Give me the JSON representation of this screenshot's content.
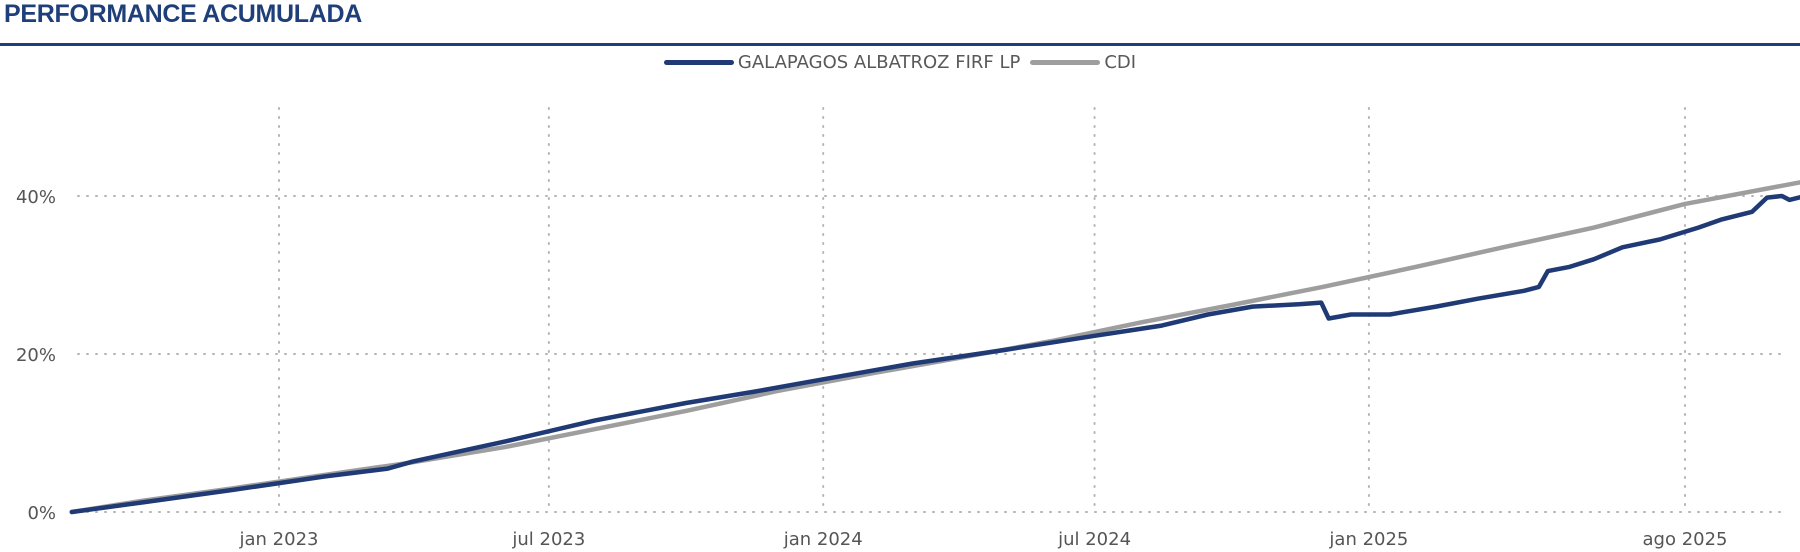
{
  "chart_data": {
    "type": "line",
    "title": "PERFORMANCE ACUMULADA",
    "ylim": [
      0,
      0.5
    ],
    "yticks": [
      {
        "value": 0,
        "label": "0%"
      },
      {
        "value": 0.2,
        "label": "20%"
      },
      {
        "value": 0.4,
        "label": "40%"
      }
    ],
    "xlim": [
      "2022-08-01",
      "2025-10-31"
    ],
    "xticks": [
      {
        "date": "2023-01-01",
        "label": "jan 2023"
      },
      {
        "date": "2023-07-01",
        "label": "jul 2023"
      },
      {
        "date": "2024-01-01",
        "label": "jan 2024"
      },
      {
        "date": "2024-07-01",
        "label": "jul 2024"
      },
      {
        "date": "2025-01-01",
        "label": "jan 2025"
      },
      {
        "date": "2025-08-01",
        "label": "ago 2025"
      }
    ],
    "grid": true,
    "legend_position": "top-center",
    "series": [
      {
        "name": "GALAPAGOS ALBATROZ FIRF LP",
        "color": "#1f3a75",
        "points": [
          [
            "2022-08-15",
            0.0
          ],
          [
            "2022-10-01",
            0.012
          ],
          [
            "2022-12-01",
            0.028
          ],
          [
            "2023-02-01",
            0.045
          ],
          [
            "2023-03-15",
            0.055
          ],
          [
            "2023-04-01",
            0.064
          ],
          [
            "2023-06-01",
            0.089
          ],
          [
            "2023-08-01",
            0.116
          ],
          [
            "2023-10-01",
            0.138
          ],
          [
            "2023-11-15",
            0.152
          ],
          [
            "2024-01-01",
            0.168
          ],
          [
            "2024-03-01",
            0.188
          ],
          [
            "2024-05-01",
            0.205
          ],
          [
            "2024-07-01",
            0.223
          ],
          [
            "2024-08-15",
            0.236
          ],
          [
            "2024-09-15",
            0.25
          ],
          [
            "2024-10-15",
            0.26
          ],
          [
            "2024-11-15",
            0.263
          ],
          [
            "2024-11-30",
            0.265
          ],
          [
            "2024-12-05",
            0.245
          ],
          [
            "2024-12-20",
            0.25
          ],
          [
            "2025-01-15",
            0.25
          ],
          [
            "2025-02-15",
            0.26
          ],
          [
            "2025-03-15",
            0.27
          ],
          [
            "2025-04-15",
            0.28
          ],
          [
            "2025-04-25",
            0.285
          ],
          [
            "2025-05-01",
            0.305
          ],
          [
            "2025-05-15",
            0.31
          ],
          [
            "2025-06-01",
            0.32
          ],
          [
            "2025-06-20",
            0.335
          ],
          [
            "2025-07-15",
            0.345
          ],
          [
            "2025-08-10",
            0.36
          ],
          [
            "2025-08-25",
            0.37
          ],
          [
            "2025-09-15",
            0.38
          ],
          [
            "2025-09-25",
            0.398
          ],
          [
            "2025-10-05",
            0.4
          ],
          [
            "2025-10-10",
            0.395
          ],
          [
            "2025-10-25",
            0.402
          ]
        ]
      },
      {
        "name": "CDI",
        "color": "#9e9e9e",
        "points": [
          [
            "2022-08-15",
            0.0
          ],
          [
            "2022-10-01",
            0.014
          ],
          [
            "2022-12-01",
            0.03
          ],
          [
            "2023-02-01",
            0.047
          ],
          [
            "2023-04-01",
            0.063
          ],
          [
            "2023-06-01",
            0.082
          ],
          [
            "2023-08-01",
            0.105
          ],
          [
            "2023-10-01",
            0.128
          ],
          [
            "2023-12-01",
            0.153
          ],
          [
            "2024-02-01",
            0.175
          ],
          [
            "2024-04-01",
            0.195
          ],
          [
            "2024-06-01",
            0.216
          ],
          [
            "2024-08-01",
            0.24
          ],
          [
            "2024-10-01",
            0.262
          ],
          [
            "2024-12-01",
            0.285
          ],
          [
            "2025-02-01",
            0.31
          ],
          [
            "2025-04-01",
            0.335
          ],
          [
            "2025-06-01",
            0.36
          ],
          [
            "2025-08-01",
            0.39
          ],
          [
            "2025-10-25",
            0.42
          ]
        ]
      }
    ]
  }
}
